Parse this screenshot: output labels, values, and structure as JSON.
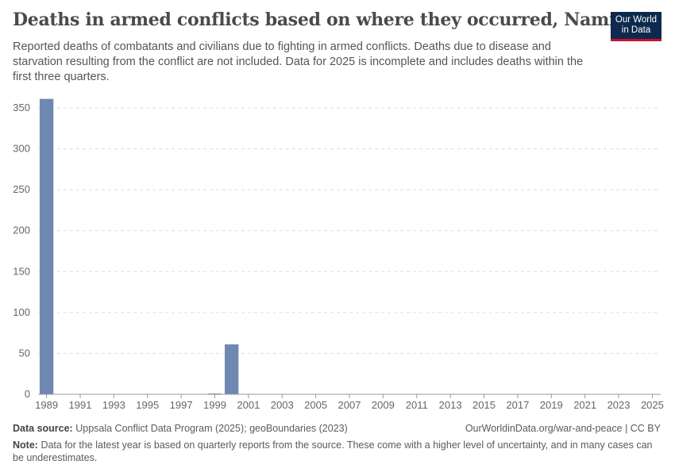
{
  "header": {
    "title": "Deaths in armed conflicts based on where they occurred, Namibia",
    "subtitle": "Reported deaths of combatants and civilians due to fighting in armed conflicts. Deaths due to disease and starvation resulting from the conflict are not included. Data for 2025 is incomplete and includes deaths within the first three quarters.",
    "logo_line1": "Our World",
    "logo_line2": "in Data"
  },
  "footer": {
    "source_label": "Data source:",
    "source_text": "Uppsala Conflict Data Program (2025); geoBoundaries (2023)",
    "credit": "OurWorldinData.org/war-and-peace | CC BY",
    "note_label": "Note:",
    "note_text": "Data for the latest year is based on quarterly reports from the source. These come with a higher level of uncertainty, and in many cases can be underestimates."
  },
  "colors": {
    "bar": "#6f88b1",
    "grid": "#dddddd",
    "axis": "#999999"
  },
  "chart_data": {
    "type": "bar",
    "title": "Deaths in armed conflicts based on where they occurred, Namibia",
    "xlabel": "",
    "ylabel": "",
    "ylim": [
      0,
      360
    ],
    "yticks": [
      0,
      50,
      100,
      150,
      200,
      250,
      300,
      350
    ],
    "xticks": [
      "1989",
      "1991",
      "1993",
      "1995",
      "1997",
      "1999",
      "2001",
      "2003",
      "2005",
      "2007",
      "2009",
      "2011",
      "2013",
      "2015",
      "2017",
      "2019",
      "2021",
      "2023",
      "2025"
    ],
    "grid": true,
    "categories": [
      1989,
      1990,
      1991,
      1992,
      1993,
      1994,
      1995,
      1996,
      1997,
      1998,
      1999,
      2000,
      2001,
      2002,
      2003,
      2004,
      2005,
      2006,
      2007,
      2008,
      2009,
      2010,
      2011,
      2012,
      2013,
      2014,
      2015,
      2016,
      2017,
      2018,
      2019,
      2020,
      2021,
      2022,
      2023,
      2024,
      2025
    ],
    "values": [
      361,
      0,
      0,
      0,
      0,
      0,
      0,
      0,
      0,
      0,
      1,
      61,
      0,
      0,
      0,
      0,
      0,
      0,
      0,
      0,
      0,
      0,
      0,
      0,
      0,
      0,
      0,
      0,
      0,
      0,
      0,
      0,
      0,
      0,
      0,
      0,
      0
    ]
  }
}
